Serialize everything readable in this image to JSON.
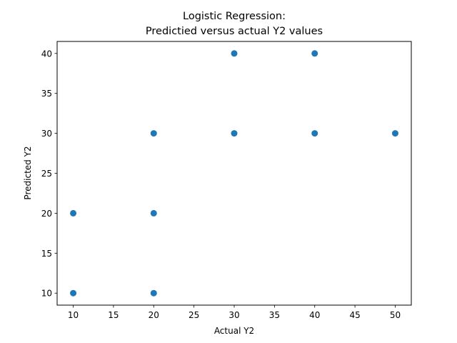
{
  "chart_data": {
    "type": "scatter",
    "title_line1": "Logistic Regression:",
    "title_line2": "Predictied versus actual Y2 values",
    "xlabel": "Actual Y2",
    "ylabel": "Predicted Y2",
    "xlim": [
      8,
      52
    ],
    "ylim": [
      8.5,
      41.5
    ],
    "xticks": [
      10,
      15,
      20,
      25,
      30,
      35,
      40,
      45,
      50
    ],
    "yticks": [
      10,
      15,
      20,
      25,
      30,
      35,
      40
    ],
    "grid": false,
    "marker_color": "#1f77b4",
    "points": [
      {
        "x": 10,
        "y": 10
      },
      {
        "x": 10,
        "y": 20
      },
      {
        "x": 20,
        "y": 10
      },
      {
        "x": 20,
        "y": 20
      },
      {
        "x": 20,
        "y": 30
      },
      {
        "x": 30,
        "y": 30
      },
      {
        "x": 30,
        "y": 40
      },
      {
        "x": 40,
        "y": 30
      },
      {
        "x": 40,
        "y": 40
      },
      {
        "x": 50,
        "y": 30
      }
    ]
  }
}
